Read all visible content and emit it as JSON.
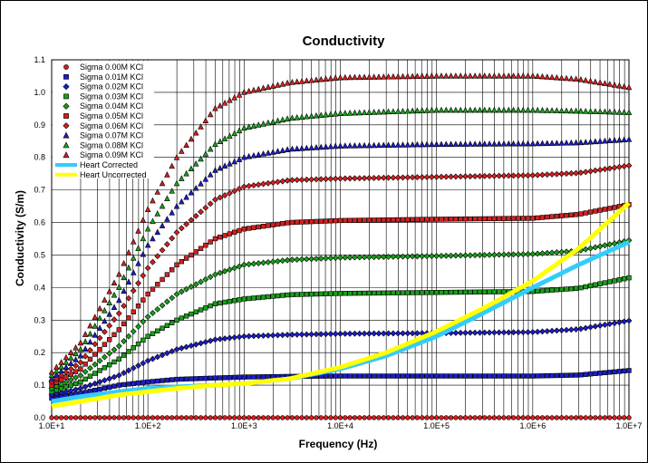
{
  "chart_data": {
    "type": "scatter",
    "title": "Conductivity",
    "xlabel": "Frequency (Hz)",
    "ylabel": "Conductivity (S/m)",
    "x_scale": "log",
    "xlim": [
      10,
      10000000
    ],
    "ylim": [
      0,
      1.1
    ],
    "x_tick_labels": [
      "1.0E+1",
      "1.0E+2",
      "1.0E+3",
      "1.0E+4",
      "1.0E+5",
      "1.0E+6",
      "1.0E+7"
    ],
    "y_tick_labels": [
      "0.0",
      "0.1",
      "0.2",
      "0.3",
      "0.4",
      "0.5",
      "0.6",
      "0.7",
      "0.8",
      "0.9",
      "1.0",
      "1.1"
    ],
    "grid": true,
    "legend_position": "top-left",
    "series": [
      {
        "name": "Sigma 0.00M KCl",
        "marker": "circle",
        "color": "#d42020",
        "line": false,
        "x": [
          10,
          100,
          1000,
          10000,
          100000,
          1000000,
          10000000
        ],
        "y": [
          0.0,
          0.0,
          0.0,
          0.0,
          0.0,
          0.0,
          0.0
        ]
      },
      {
        "name": "Sigma 0.01M KCl",
        "marker": "square",
        "color": "#1c1cc8",
        "line": false,
        "x": [
          10,
          20,
          50,
          100,
          200,
          500,
          1000,
          3000,
          10000,
          100000,
          1000000,
          3000000,
          10000000
        ],
        "y": [
          0.06,
          0.075,
          0.1,
          0.11,
          0.118,
          0.122,
          0.125,
          0.127,
          0.128,
          0.128,
          0.128,
          0.131,
          0.145
        ]
      },
      {
        "name": "Sigma 0.02M KCl",
        "marker": "diamond",
        "color": "#1c1cc8",
        "line": false,
        "x": [
          10,
          20,
          50,
          100,
          200,
          500,
          1000,
          3000,
          10000,
          100000,
          1000000,
          3000000,
          10000000
        ],
        "y": [
          0.07,
          0.09,
          0.13,
          0.175,
          0.21,
          0.24,
          0.25,
          0.255,
          0.258,
          0.26,
          0.263,
          0.272,
          0.298
        ]
      },
      {
        "name": "Sigma 0.03M KCl",
        "marker": "square",
        "color": "#18a018",
        "line": false,
        "x": [
          10,
          20,
          50,
          100,
          200,
          500,
          1000,
          3000,
          10000,
          100000,
          1000000,
          3000000,
          10000000
        ],
        "y": [
          0.08,
          0.11,
          0.18,
          0.25,
          0.3,
          0.35,
          0.365,
          0.378,
          0.382,
          0.385,
          0.388,
          0.398,
          0.43
        ]
      },
      {
        "name": "Sigma 0.04M KCl",
        "marker": "diamond",
        "color": "#18a018",
        "line": false,
        "x": [
          10,
          20,
          50,
          100,
          200,
          500,
          1000,
          3000,
          10000,
          100000,
          1000000,
          3000000,
          10000000
        ],
        "y": [
          0.09,
          0.13,
          0.22,
          0.31,
          0.38,
          0.44,
          0.47,
          0.485,
          0.492,
          0.497,
          0.503,
          0.513,
          0.545
        ]
      },
      {
        "name": "Sigma 0.05M KCl",
        "marker": "square",
        "color": "#d42020",
        "line": false,
        "x": [
          10,
          20,
          50,
          100,
          200,
          500,
          1000,
          3000,
          10000,
          100000,
          1000000,
          3000000,
          10000000
        ],
        "y": [
          0.1,
          0.15,
          0.27,
          0.38,
          0.47,
          0.55,
          0.58,
          0.6,
          0.606,
          0.61,
          0.613,
          0.625,
          0.655
        ]
      },
      {
        "name": "Sigma 0.06M KCl",
        "marker": "diamond",
        "color": "#d42020",
        "line": false,
        "x": [
          10,
          20,
          50,
          100,
          200,
          500,
          1000,
          3000,
          10000,
          100000,
          1000000,
          3000000,
          10000000
        ],
        "y": [
          0.11,
          0.17,
          0.32,
          0.46,
          0.57,
          0.67,
          0.71,
          0.73,
          0.735,
          0.74,
          0.745,
          0.752,
          0.775
        ]
      },
      {
        "name": "Sigma 0.07M KCl",
        "marker": "triangle",
        "color": "#1c1cc8",
        "line": false,
        "x": [
          10,
          20,
          50,
          100,
          200,
          500,
          1000,
          3000,
          10000,
          100000,
          1000000,
          3000000,
          10000000
        ],
        "y": [
          0.12,
          0.19,
          0.36,
          0.53,
          0.65,
          0.76,
          0.8,
          0.825,
          0.835,
          0.84,
          0.842,
          0.845,
          0.855
        ]
      },
      {
        "name": "Sigma 0.08M KCl",
        "marker": "triangle",
        "color": "#18a018",
        "line": false,
        "x": [
          10,
          20,
          50,
          100,
          200,
          500,
          1000,
          3000,
          10000,
          100000,
          1000000,
          3000000,
          10000000
        ],
        "y": [
          0.13,
          0.21,
          0.4,
          0.58,
          0.72,
          0.84,
          0.89,
          0.92,
          0.935,
          0.945,
          0.945,
          0.942,
          0.938
        ]
      },
      {
        "name": "Sigma 0.09M KCl",
        "marker": "triangle",
        "color": "#d42020",
        "line": false,
        "x": [
          10,
          20,
          50,
          100,
          200,
          500,
          1000,
          3000,
          10000,
          100000,
          1000000,
          3000000,
          10000000
        ],
        "y": [
          0.14,
          0.23,
          0.44,
          0.64,
          0.8,
          0.95,
          1.0,
          1.03,
          1.045,
          1.05,
          1.05,
          1.04,
          1.015
        ]
      },
      {
        "name": "Heart Corrected",
        "marker": "square",
        "color": "#33ccff",
        "line": true,
        "x": [
          10,
          20,
          50,
          100,
          200,
          500,
          1000,
          3000,
          10000,
          30000,
          100000,
          300000,
          1000000,
          3000000,
          10000000
        ],
        "y": [
          0.05,
          0.065,
          0.08,
          0.09,
          0.095,
          0.1,
          0.105,
          0.12,
          0.15,
          0.19,
          0.25,
          0.32,
          0.4,
          0.47,
          0.54
        ]
      },
      {
        "name": "Heart Uncorrected",
        "marker": "square",
        "color": "#ffff00",
        "line": true,
        "x": [
          10,
          20,
          50,
          100,
          200,
          500,
          1000,
          3000,
          10000,
          30000,
          100000,
          300000,
          1000000,
          3000000,
          10000000
        ],
        "y": [
          0.035,
          0.05,
          0.07,
          0.08,
          0.09,
          0.1,
          0.105,
          0.12,
          0.155,
          0.2,
          0.265,
          0.335,
          0.42,
          0.52,
          0.66
        ]
      }
    ]
  }
}
